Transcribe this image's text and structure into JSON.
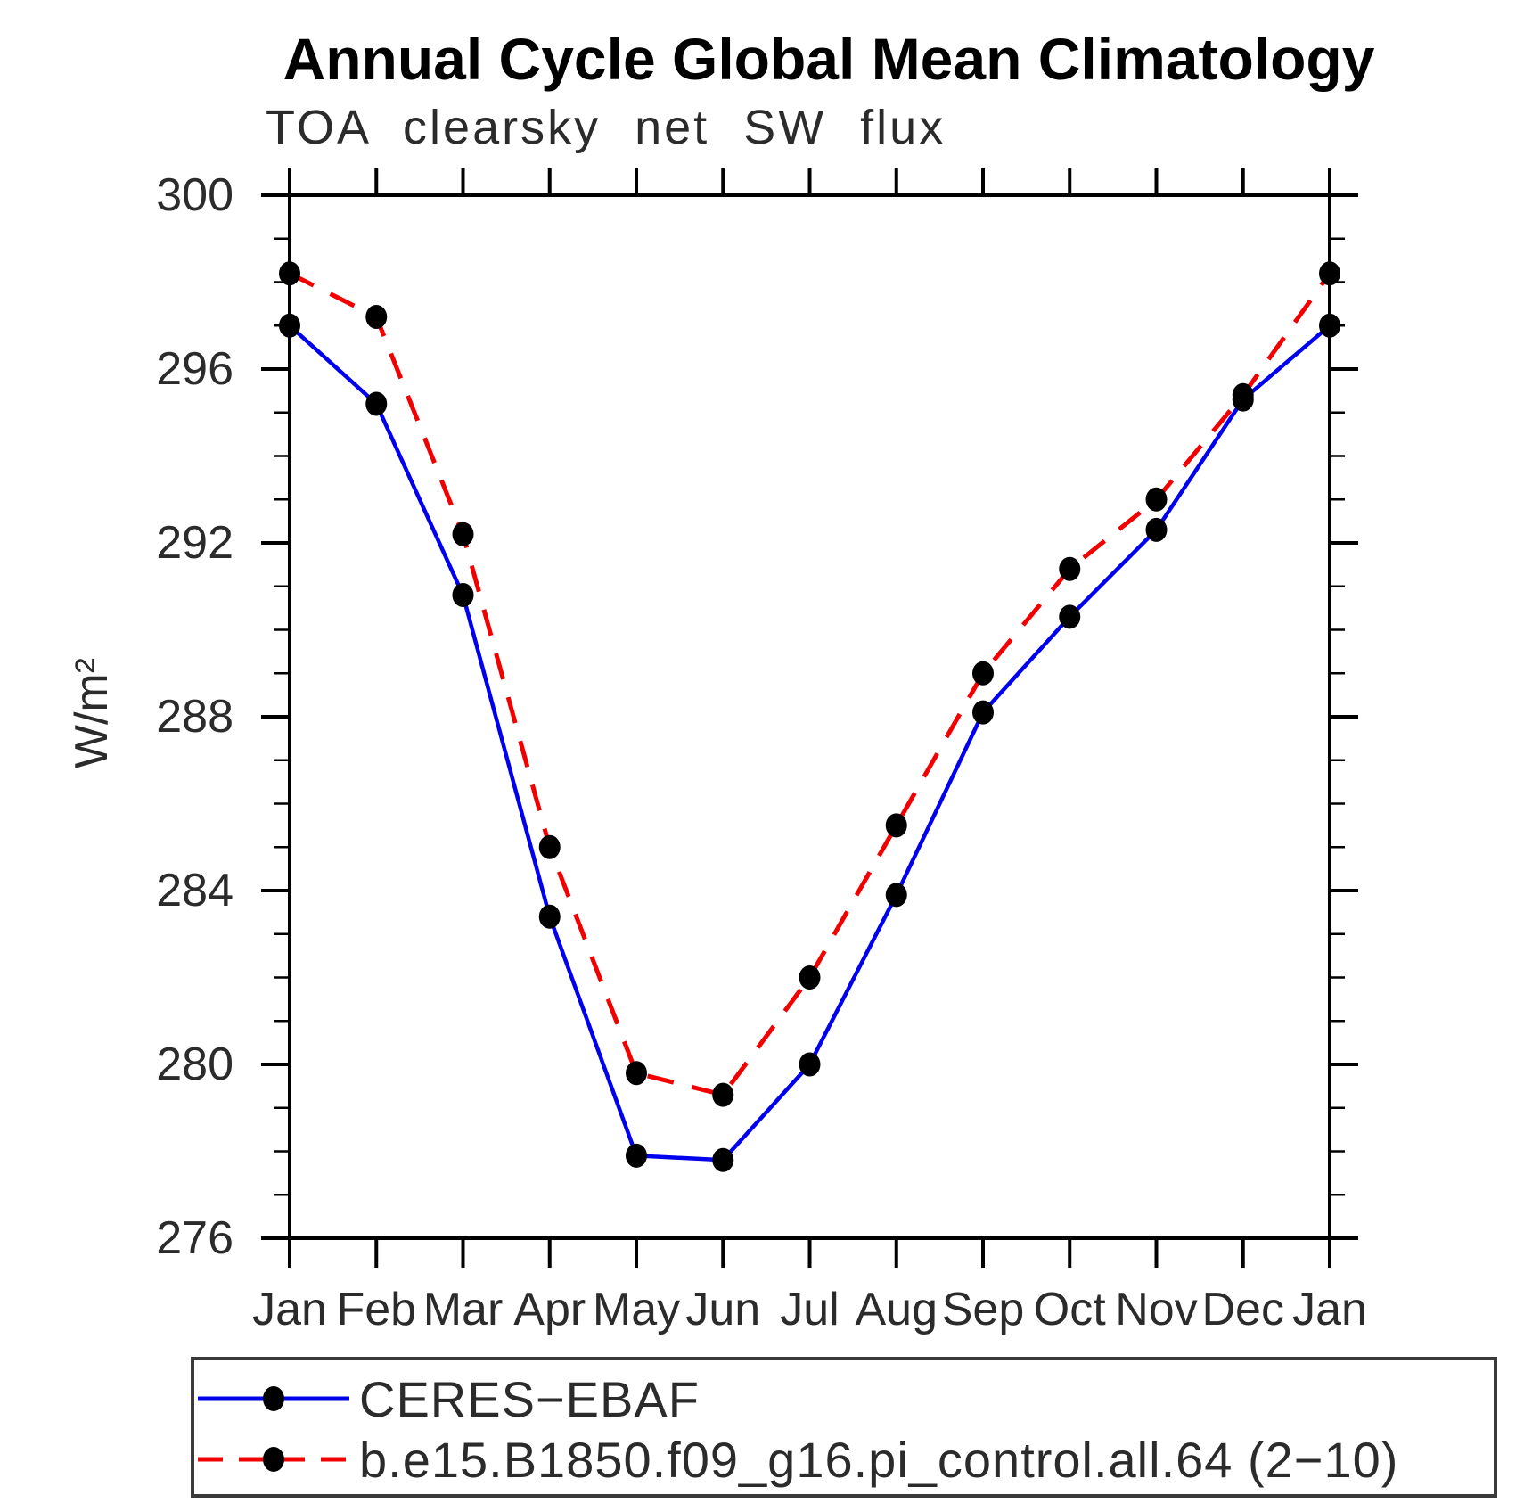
{
  "header": {
    "title": "Annual Cycle Global Mean Climatology",
    "subtitle": "TOA clearsky net SW flux"
  },
  "chart_data": {
    "type": "line",
    "title": "Annual Cycle Global Mean Climatology",
    "subtitle": "TOA clearsky net SW flux",
    "xlabel": "",
    "ylabel": "W/m²",
    "categories": [
      "Jan",
      "Feb",
      "Mar",
      "Apr",
      "May",
      "Jun",
      "Jul",
      "Aug",
      "Sep",
      "Oct",
      "Nov",
      "Dec",
      "Jan"
    ],
    "ylim": [
      276,
      300
    ],
    "ytick_major_step": 4,
    "ytick_minor_step": 1,
    "ytick_labels": [
      "276",
      "280",
      "284",
      "288",
      "292",
      "296",
      "300"
    ],
    "grid": false,
    "legend_position": "bottom-left",
    "series": [
      {
        "name": "CERES−EBAF",
        "color": "#0000ee",
        "line_style": "solid",
        "marker": "circle",
        "marker_color": "#000000",
        "values": [
          297.0,
          295.2,
          290.8,
          283.4,
          277.9,
          277.8,
          280.0,
          283.9,
          288.1,
          290.3,
          292.3,
          295.3,
          297.0
        ]
      },
      {
        "name": "b.e15.B1850.f09_g16.pi_control.all.64 (2−10)",
        "color": "#f20000",
        "line_style": "dashed",
        "marker": "circle",
        "marker_color": "#000000",
        "values": [
          298.2,
          297.2,
          292.2,
          285.0,
          279.8,
          279.3,
          282.0,
          285.5,
          289.0,
          291.4,
          293.0,
          295.4,
          298.2
        ]
      }
    ]
  },
  "colors": {
    "background": "#ffffff",
    "axis": "#000000",
    "text": "#2b2b2b",
    "legend_border": "#3a3a3a"
  }
}
